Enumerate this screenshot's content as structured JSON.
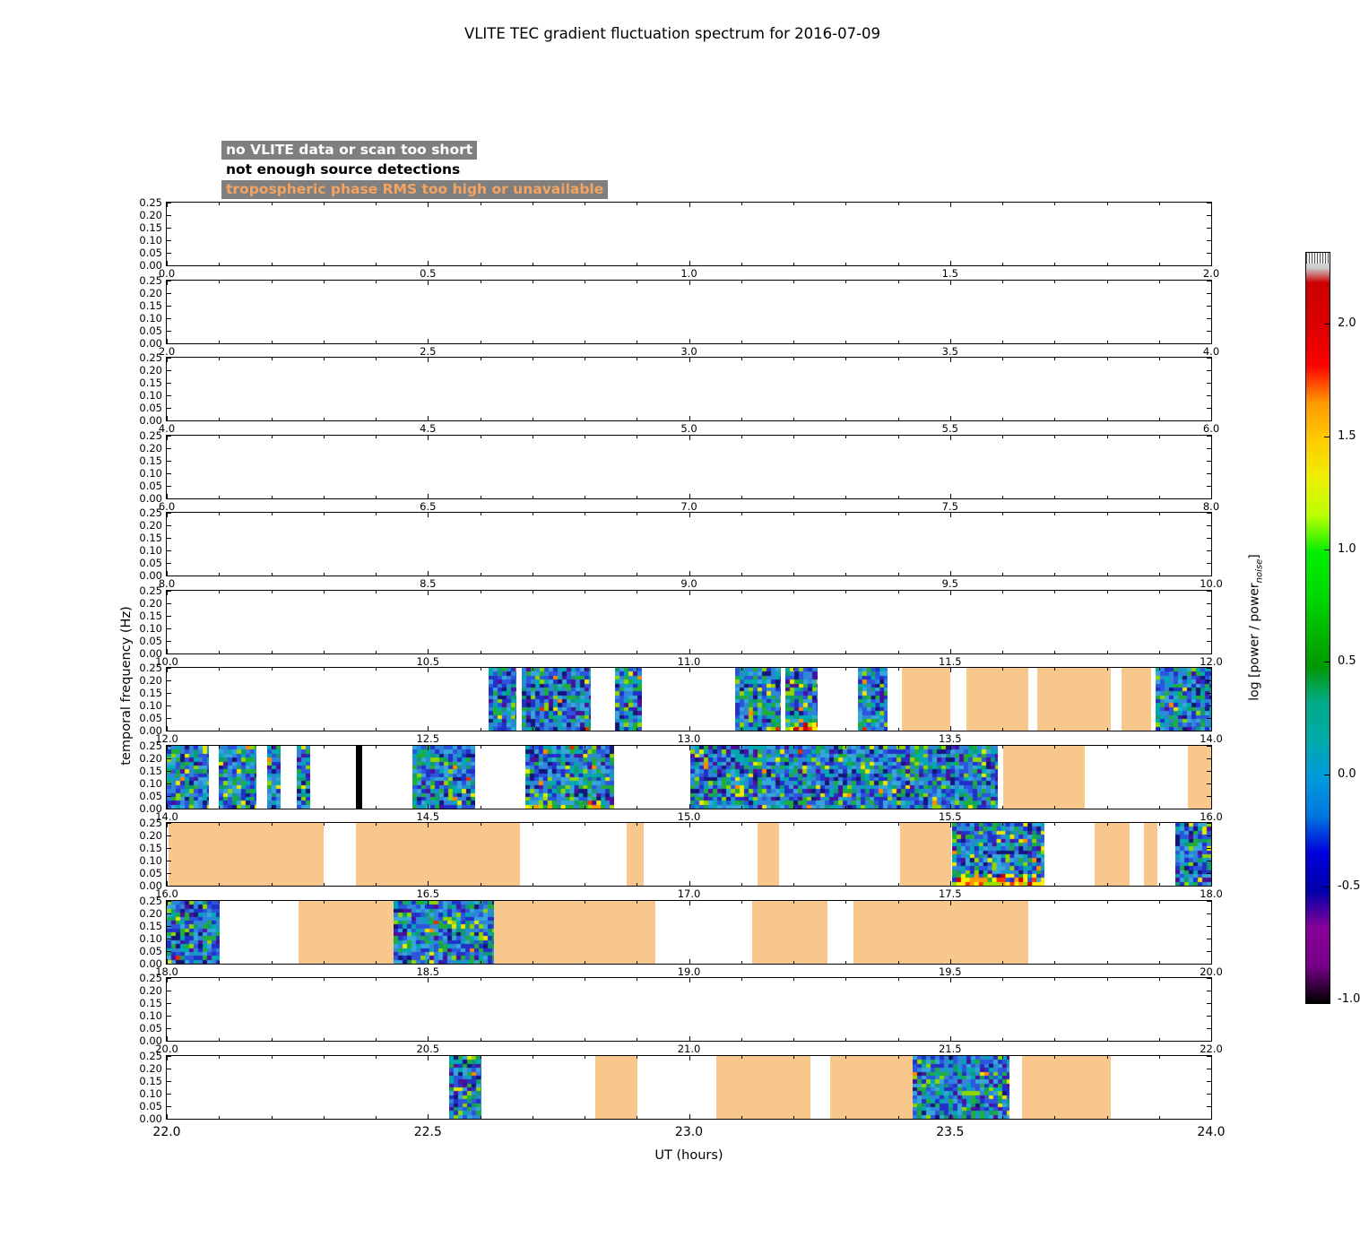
{
  "title": "VLITE TEC gradient fluctuation spectrum for 2016-07-09",
  "legend": {
    "items": [
      {
        "label": "no VLITE data or scan too short",
        "text_color": "#ffffff",
        "bg_color": "#7f7f7f"
      },
      {
        "label": "not enough source detections",
        "text_color": "#000000",
        "bg_color": ""
      },
      {
        "label": "tropospheric phase RMS too high or unavailable",
        "text_color": "#f4a460",
        "bg_color": "#7f7f7f"
      }
    ]
  },
  "axes": {
    "ylabel": "temporal frequency (Hz)",
    "xlabel": "UT (hours)",
    "y_ticks": [
      "0.25",
      "0.20",
      "0.15",
      "0.10",
      "0.05",
      "0.00"
    ]
  },
  "colorbar": {
    "label_prefix": "log [power / power",
    "label_sub": "noise",
    "label_suffix": "]",
    "ticks": [
      "2.0",
      "1.5",
      "1.0",
      "0.5",
      "0.0",
      "-0.5",
      "-1.0"
    ],
    "vmin": -1.02,
    "vmax": 2.32
  },
  "chart_data": {
    "type": "heatmap",
    "title": "VLITE TEC gradient fluctuation spectrum for 2016-07-09",
    "xlabel": "UT (hours)",
    "ylabel": "temporal frequency (Hz)",
    "x_range_hours": [
      0,
      24
    ],
    "y_range_hz": [
      0.0,
      0.25
    ],
    "colorbar_range_log_power": [
      -1.0,
      2.3
    ],
    "flag_colors": {
      "no_data": "#ffffff",
      "not_enough_sources": "#000000",
      "tropospheric": "#f7c78c"
    },
    "panels": [
      {
        "start": 0,
        "end": 2,
        "x_tick_labels": [
          "0.0",
          "0.5",
          "1.0",
          "1.5",
          "2.0"
        ],
        "segments": []
      },
      {
        "start": 2,
        "end": 4,
        "x_tick_labels": [
          "2.0",
          "2.5",
          "3.0",
          "3.5",
          "4.0"
        ],
        "segments": []
      },
      {
        "start": 4,
        "end": 6,
        "x_tick_labels": [
          "4.0",
          "4.5",
          "5.0",
          "5.5",
          "6.0"
        ],
        "segments": []
      },
      {
        "start": 6,
        "end": 8,
        "x_tick_labels": [
          "6.0",
          "6.5",
          "7.0",
          "7.5",
          "8.0"
        ],
        "segments": []
      },
      {
        "start": 8,
        "end": 10,
        "x_tick_labels": [
          "8.0",
          "8.5",
          "9.0",
          "9.5",
          "10.0"
        ],
        "segments": []
      },
      {
        "start": 10,
        "end": 12,
        "x_tick_labels": [
          "10.0",
          "10.5",
          "11.0",
          "11.5",
          "12.0"
        ],
        "segments": []
      },
      {
        "start": 12,
        "end": 14,
        "x_tick_labels": [
          "12.0",
          "12.5",
          "13.0",
          "13.5",
          "14.0"
        ],
        "segments": [
          {
            "t0": 12.617,
            "t1": 12.67,
            "kind": "spectrum"
          },
          {
            "t0": 12.679,
            "t1": 12.812,
            "kind": "spectrum"
          },
          {
            "t0": 12.859,
            "t1": 12.91,
            "kind": "spectrum"
          },
          {
            "t0": 13.088,
            "t1": 13.176,
            "kind": "spectrum"
          },
          {
            "t0": 13.184,
            "t1": 13.246,
            "kind": "spectrum",
            "hot": 2
          },
          {
            "t0": 13.323,
            "t1": 13.381,
            "kind": "spectrum"
          },
          {
            "t0": 13.407,
            "t1": 13.5,
            "kind": "tropo"
          },
          {
            "t0": 13.532,
            "t1": 13.649,
            "kind": "tropo"
          },
          {
            "t0": 13.667,
            "t1": 13.808,
            "kind": "tropo"
          },
          {
            "t0": 13.829,
            "t1": 13.885,
            "kind": "tropo"
          },
          {
            "t0": 13.894,
            "t1": 14.0,
            "kind": "spectrum"
          }
        ]
      },
      {
        "start": 14,
        "end": 16,
        "x_tick_labels": [
          "14.0",
          "14.5",
          "15.0",
          "15.5",
          "16.0"
        ],
        "segments": [
          {
            "t0": 14.0,
            "t1": 14.081,
            "kind": "spectrum"
          },
          {
            "t0": 14.099,
            "t1": 14.171,
            "kind": "spectrum"
          },
          {
            "t0": 14.192,
            "t1": 14.218,
            "kind": "spectrum"
          },
          {
            "t0": 14.248,
            "t1": 14.274,
            "kind": "spectrum"
          },
          {
            "t0": 14.363,
            "t1": 14.375,
            "kind": "black"
          },
          {
            "t0": 14.47,
            "t1": 14.591,
            "kind": "spectrum"
          },
          {
            "t0": 14.686,
            "t1": 14.857,
            "kind": "spectrum",
            "hot": 1
          },
          {
            "t0": 15.003,
            "t1": 15.592,
            "kind": "spectrum"
          },
          {
            "t0": 15.602,
            "t1": 15.758,
            "kind": "tropo"
          },
          {
            "t0": 15.955,
            "t1": 16.0,
            "kind": "tropo"
          }
        ]
      },
      {
        "start": 16,
        "end": 18,
        "x_tick_labels": [
          "16.0",
          "16.5",
          "17.0",
          "17.5",
          "18.0"
        ],
        "segments": [
          {
            "t0": 16.003,
            "t1": 16.3,
            "kind": "tropo"
          },
          {
            "t0": 16.362,
            "t1": 16.677,
            "kind": "tropo"
          },
          {
            "t0": 16.881,
            "t1": 16.913,
            "kind": "tropo"
          },
          {
            "t0": 17.131,
            "t1": 17.172,
            "kind": "tropo"
          },
          {
            "t0": 17.404,
            "t1": 17.503,
            "kind": "tropo"
          },
          {
            "t0": 17.503,
            "t1": 17.681,
            "kind": "spectrum",
            "hot": 2
          },
          {
            "t0": 17.777,
            "t1": 17.844,
            "kind": "tropo"
          },
          {
            "t0": 17.871,
            "t1": 17.897,
            "kind": "tropo"
          },
          {
            "t0": 17.931,
            "t1": 18.0,
            "kind": "spectrum"
          }
        ]
      },
      {
        "start": 18,
        "end": 20,
        "x_tick_labels": [
          "18.0",
          "18.5",
          "19.0",
          "19.5",
          "20.0"
        ],
        "segments": [
          {
            "t0": 18.0,
            "t1": 18.101,
            "kind": "spectrum"
          },
          {
            "t0": 18.252,
            "t1": 18.435,
            "kind": "tropo"
          },
          {
            "t0": 18.435,
            "t1": 18.627,
            "kind": "spectrum"
          },
          {
            "t0": 18.627,
            "t1": 18.936,
            "kind": "tropo"
          },
          {
            "t0": 19.121,
            "t1": 19.265,
            "kind": "tropo"
          },
          {
            "t0": 19.315,
            "t1": 19.65,
            "kind": "tropo"
          }
        ]
      },
      {
        "start": 20,
        "end": 22,
        "x_tick_labels": [
          "20.0",
          "20.5",
          "21.0",
          "21.5",
          "22.0"
        ],
        "segments": []
      },
      {
        "start": 22,
        "end": 24,
        "x_tick_labels": [
          "22.0",
          "22.5",
          "23.0",
          "23.5",
          "24.0"
        ],
        "segments": [
          {
            "t0": 22.54,
            "t1": 22.602,
            "kind": "spectrum"
          },
          {
            "t0": 22.821,
            "t1": 22.901,
            "kind": "tropo"
          },
          {
            "t0": 23.052,
            "t1": 23.232,
            "kind": "tropo"
          },
          {
            "t0": 23.27,
            "t1": 23.428,
            "kind": "tropo"
          },
          {
            "t0": 23.428,
            "t1": 23.613,
            "kind": "spectrum"
          },
          {
            "t0": 23.638,
            "t1": 23.808,
            "kind": "tropo"
          }
        ]
      }
    ]
  }
}
